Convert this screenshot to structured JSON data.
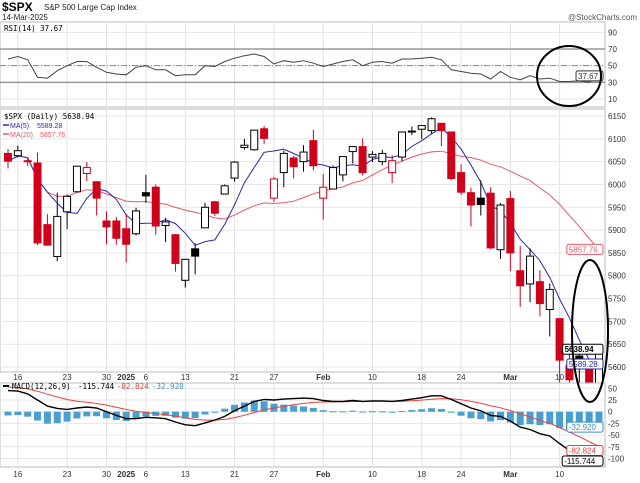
{
  "header": {
    "symbol": "$SPX",
    "name": "S&P 500 Large Cap Index",
    "date": "14-Mar-2025",
    "credit": "@StockCharts.com"
  },
  "colors": {
    "up": "#000000",
    "down": "#d0021b",
    "ma5": "#2a2aa8",
    "ma20": "#e05c6a",
    "macd": "#000000",
    "signal": "#e8413c",
    "histogram": "#4a9fd0",
    "rsi": "#444444",
    "annotation": "#000000"
  },
  "dates": [
    "Dec 13",
    "Dec 16",
    "Dec 17",
    "Dec 18",
    "Dec 19",
    "Dec 20",
    "Dec 23",
    "Dec 24",
    "Dec 26",
    "Dec 27",
    "Dec 30",
    "Dec 31",
    "Jan 2",
    "Jan 3",
    "Jan 6",
    "Jan 7",
    "Jan 8",
    "Jan 10",
    "Jan 13",
    "Jan 14",
    "Jan 15",
    "Jan 16",
    "Jan 17",
    "Jan 21",
    "Jan 22",
    "Jan 23",
    "Jan 24",
    "Jan 27",
    "Jan 28",
    "Jan 29",
    "Jan 30",
    "Jan 31",
    "Feb 3",
    "Feb 4",
    "Feb 5",
    "Feb 6",
    "Feb 7",
    "Feb 10",
    "Feb 11",
    "Feb 12",
    "Feb 13",
    "Feb 14",
    "Feb 18",
    "Feb 19",
    "Feb 20",
    "Feb 21",
    "Feb 24",
    "Feb 25",
    "Feb 26",
    "Feb 27",
    "Feb 28",
    "Mar 3",
    "Mar 4",
    "Mar 5",
    "Mar 6",
    "Mar 7",
    "Mar 10",
    "Mar 11",
    "Mar 12",
    "Mar 13",
    "Mar 14"
  ],
  "x_ticks": [
    {
      "label": "16",
      "date": "Dec 16"
    },
    {
      "label": "23",
      "date": "Dec 23"
    },
    {
      "label": "30",
      "date": "Dec 30"
    },
    {
      "label": "2025",
      "date": "Jan 2"
    },
    {
      "label": "6",
      "date": "Jan 6"
    },
    {
      "label": "13",
      "date": "Jan 13"
    },
    {
      "label": "21",
      "date": "Jan 21"
    },
    {
      "label": "27",
      "date": "Jan 27"
    },
    {
      "label": "Feb",
      "date": "Feb 3"
    },
    {
      "label": "10",
      "date": "Feb 10"
    },
    {
      "label": "18",
      "date": "Feb 18"
    },
    {
      "label": "24",
      "date": "Feb 24"
    },
    {
      "label": "Mar",
      "date": "Mar 3"
    },
    {
      "label": "10",
      "date": "Mar 10"
    }
  ],
  "chart_data": [
    {
      "type": "line",
      "title": "RSI(14) 37.67",
      "last_value": "37.67",
      "ylim": [
        0,
        100
      ],
      "y_ticks": [
        10,
        30,
        50,
        70,
        90
      ],
      "reference_lines": [
        30,
        50,
        70
      ],
      "grid": true,
      "values": [
        58,
        61,
        57,
        36,
        35,
        44,
        50,
        55,
        55,
        48,
        42,
        40,
        39,
        48,
        50,
        45,
        45,
        38,
        39,
        39,
        50,
        49,
        55,
        59,
        62,
        64,
        61,
        52,
        56,
        54,
        56,
        53,
        49,
        52,
        55,
        57,
        50,
        54,
        55,
        53,
        58,
        58,
        59,
        60,
        57,
        45,
        43,
        41,
        40,
        34,
        43,
        36,
        33,
        38,
        34,
        35,
        31,
        31,
        32,
        30,
        37.67
      ]
    },
    {
      "type": "candlestick",
      "title": "$SPX (Daily) 5638.94",
      "last_value": "5638.94",
      "ylim": [
        5575,
        6175
      ],
      "y_ticks": [
        5600,
        5650,
        5700,
        5750,
        5800,
        5850,
        5900,
        5950,
        6000,
        6050,
        6100,
        6150
      ],
      "grid": true,
      "ohlc": [
        [
          6068,
          6078,
          6035,
          6051
        ],
        [
          6063,
          6085,
          6059,
          6074
        ],
        [
          6052,
          6058,
          6040,
          6051
        ],
        [
          6047,
          6070,
          5867,
          5872
        ],
        [
          5912,
          5935,
          5866,
          5867
        ],
        [
          5842,
          5982,
          5832,
          5930
        ],
        [
          5940,
          5978,
          5902,
          5974
        ],
        [
          5984,
          6040,
          5983,
          6040
        ],
        [
          6024,
          6049,
          6007,
          6037
        ],
        [
          6006,
          6006,
          5932,
          5970
        ],
        [
          5920,
          5941,
          5869,
          5907
        ],
        [
          5920,
          5929,
          5868,
          5882
        ],
        [
          5903,
          5935,
          5829,
          5869
        ],
        [
          5892,
          5949,
          5888,
          5942
        ],
        [
          5982,
          6021,
          5960,
          5975
        ],
        [
          5994,
          6000,
          5890,
          5909
        ],
        [
          5910,
          5927,
          5874,
          5918
        ],
        [
          5890,
          5890,
          5809,
          5827
        ],
        [
          5790,
          5836,
          5774,
          5836
        ],
        [
          5859,
          5871,
          5803,
          5843
        ],
        [
          5905,
          5960,
          5905,
          5950
        ],
        [
          5962,
          5964,
          5931,
          5937
        ],
        [
          5979,
          6000,
          5978,
          5997
        ],
        [
          6014,
          6051,
          6006,
          6049
        ],
        [
          6081,
          6100,
          6076,
          6086
        ],
        [
          6076,
          6119,
          6074,
          6119
        ],
        [
          6122,
          6128,
          6089,
          6101
        ],
        [
          5970,
          6017,
          5962,
          6012
        ],
        [
          6026,
          6074,
          5994,
          6068
        ],
        [
          6058,
          6063,
          6013,
          6039
        ],
        [
          6050,
          6086,
          6028,
          6071
        ],
        [
          6096,
          6120,
          6031,
          6041
        ],
        [
          5970,
          6023,
          5923,
          5994
        ],
        [
          5990,
          6042,
          5990,
          6037
        ],
        [
          6021,
          6062,
          6007,
          6061
        ],
        [
          6072,
          6084,
          6046,
          6083
        ],
        [
          6083,
          6101,
          6020,
          6026
        ],
        [
          6060,
          6073,
          6049,
          6066
        ],
        [
          6050,
          6076,
          6042,
          6068
        ],
        [
          6026,
          6064,
          6003,
          6052
        ],
        [
          6060,
          6116,
          6051,
          6115
        ],
        [
          6117,
          6127,
          6108,
          6115
        ],
        [
          6121,
          6129,
          6099,
          6129
        ],
        [
          6118,
          6147,
          6111,
          6144
        ],
        [
          6134,
          6134,
          6084,
          6118
        ],
        [
          6115,
          6115,
          6009,
          6013
        ],
        [
          6026,
          6044,
          5977,
          5983
        ],
        [
          5982,
          5993,
          5908,
          5955
        ],
        [
          5970,
          6009,
          5932,
          5956
        ],
        [
          5981,
          5994,
          5858,
          5861
        ],
        [
          5857,
          5959,
          5837,
          5955
        ],
        [
          5969,
          5986,
          5810,
          5850
        ],
        [
          5811,
          5865,
          5732,
          5778
        ],
        [
          5782,
          5860,
          5742,
          5843
        ],
        [
          5787,
          5812,
          5711,
          5739
        ],
        [
          5726,
          5783,
          5667,
          5770
        ],
        [
          5706,
          5706,
          5565,
          5615
        ],
        [
          5603,
          5636,
          5529,
          5572
        ],
        [
          5624,
          5642,
          5547,
          5599
        ],
        [
          5594,
          5597,
          5505,
          5522
        ],
        [
          5563,
          5645,
          5563,
          5639
        ]
      ],
      "overlays": [
        {
          "name": "MA(5)",
          "period": 5,
          "last_value": "5589.28"
        },
        {
          "name": "MA(20)",
          "period": 20,
          "last_value": "5857.76"
        }
      ]
    },
    {
      "type": "line+bar",
      "title": "MACD(12,26,9)",
      "values_label": [
        "-115.744",
        "-82.824",
        "-32.920"
      ],
      "ylim": [
        -125,
        60
      ],
      "y_ticks": [
        50,
        25,
        0,
        -25,
        -50,
        -75,
        -100
      ],
      "grid": true,
      "macd": [
        45,
        44,
        38,
        25,
        12,
        7,
        5,
        8,
        10,
        8,
        0,
        -8,
        -15,
        -15,
        -12,
        -13,
        -15,
        -22,
        -28,
        -30,
        -24,
        -18,
        -10,
        2,
        12,
        22,
        26,
        25,
        27,
        28,
        29,
        28,
        24,
        22,
        22,
        24,
        22,
        23,
        23,
        22,
        24,
        27,
        30,
        34,
        34,
        26,
        17,
        8,
        2,
        -8,
        -10,
        -20,
        -33,
        -38,
        -47,
        -52,
        -68,
        -83,
        -93,
        -106,
        -115.744
      ],
      "signal_period": 9,
      "last": {
        "macd": "-115.744",
        "signal": "-82.824",
        "histogram": "-32.920"
      }
    }
  ]
}
